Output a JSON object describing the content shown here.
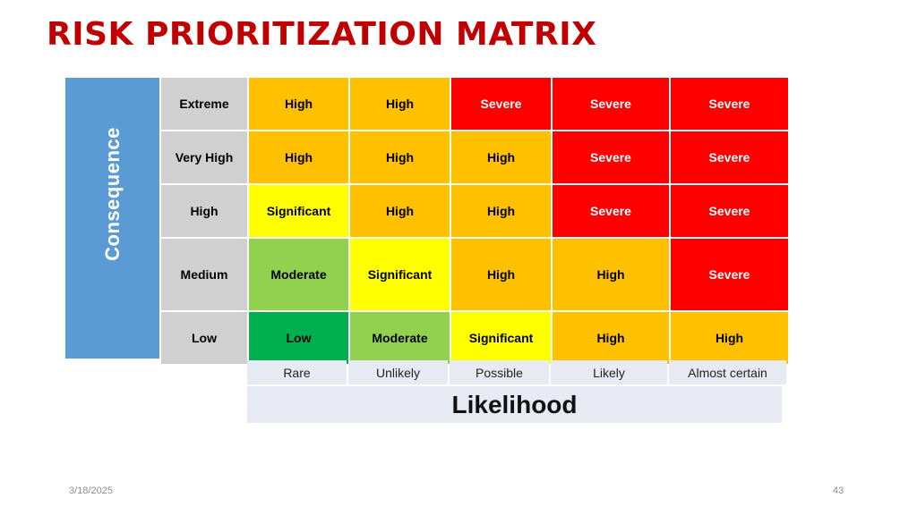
{
  "slide": {
    "title": "RISK PRIORITIZATION MATRIX",
    "date": "3/18/2025",
    "page_number": "43"
  },
  "matrix": {
    "consequence_label": "Consequence",
    "likelihood_label": "Likelihood",
    "likelihood_levels": [
      "Rare",
      "Unlikely",
      "Possible",
      "Likely",
      "Almost certain"
    ],
    "rows": [
      {
        "consequence": "Extreme",
        "cells": [
          "High",
          "High",
          "Severe",
          "Severe",
          "Severe"
        ]
      },
      {
        "consequence": "Very High",
        "cells": [
          "High",
          "High",
          "High",
          "Severe",
          "Severe"
        ]
      },
      {
        "consequence": "High",
        "cells": [
          "Significant",
          "High",
          "High",
          "Severe",
          "Severe"
        ]
      },
      {
        "consequence": "Medium",
        "cells": [
          "Moderate",
          "Significant",
          "High",
          "High",
          "Severe"
        ]
      },
      {
        "consequence": "Low",
        "cells": [
          "Low",
          "Moderate",
          "Significant",
          "High",
          "High"
        ]
      }
    ],
    "colors": {
      "Severe": "#ff0000",
      "High": "#ffc000",
      "Significant": "#ffff00",
      "Moderate": "#92d050",
      "Low": "#00b050",
      "consequence_header": "#d0d0d0",
      "consequence_bar": "#5b9bd5",
      "title": "#c00000"
    }
  }
}
